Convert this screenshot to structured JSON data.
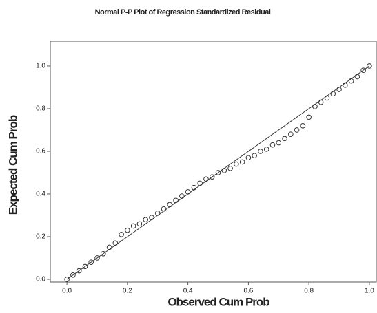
{
  "chart_data": {
    "type": "scatter",
    "title": "Normal P-P Plot of Regression Standardized Residual",
    "x_label": "Observed Cum Prob",
    "y_label": "Expected Cum Prob",
    "xlim": [
      -0.055,
      1.023
    ],
    "ylim": [
      -0.013,
      1.116
    ],
    "xticks": [
      {
        "value": 0,
        "label": "0.0"
      },
      0.2,
      0.4,
      0.6,
      0.8,
      {
        "value": 1,
        "label": "1.0"
      }
    ],
    "yticks": [
      {
        "value": 0,
        "label": "0.0"
      },
      0.2,
      0.4,
      0.6,
      0.8,
      {
        "value": 1,
        "label": "1.0"
      }
    ],
    "color": "#333333",
    "grid": false,
    "x": [
      0.0,
      0.02,
      0.04,
      0.06,
      0.08,
      0.1,
      0.12,
      0.14,
      0.16,
      0.18,
      0.2,
      0.22,
      0.24,
      0.26,
      0.28,
      0.3,
      0.32,
      0.34,
      0.36,
      0.38,
      0.4,
      0.42,
      0.44,
      0.46,
      0.48,
      0.5,
      0.52,
      0.54,
      0.56,
      0.58,
      0.6,
      0.62,
      0.64,
      0.66,
      0.68,
      0.7,
      0.72,
      0.74,
      0.76,
      0.78,
      0.8,
      0.82,
      0.84,
      0.86,
      0.88,
      0.9,
      0.92,
      0.94,
      0.96,
      0.98,
      1.0
    ],
    "values": [
      0.0,
      0.02,
      0.04,
      0.06,
      0.08,
      0.1,
      0.12,
      0.15,
      0.17,
      0.21,
      0.23,
      0.25,
      0.26,
      0.28,
      0.29,
      0.31,
      0.33,
      0.35,
      0.37,
      0.39,
      0.41,
      0.43,
      0.45,
      0.47,
      0.48,
      0.5,
      0.51,
      0.52,
      0.54,
      0.55,
      0.57,
      0.58,
      0.6,
      0.61,
      0.63,
      0.64,
      0.66,
      0.68,
      0.7,
      0.72,
      0.76,
      0.81,
      0.83,
      0.85,
      0.87,
      0.89,
      0.91,
      0.93,
      0.95,
      0.98,
      1.0
    ]
  }
}
